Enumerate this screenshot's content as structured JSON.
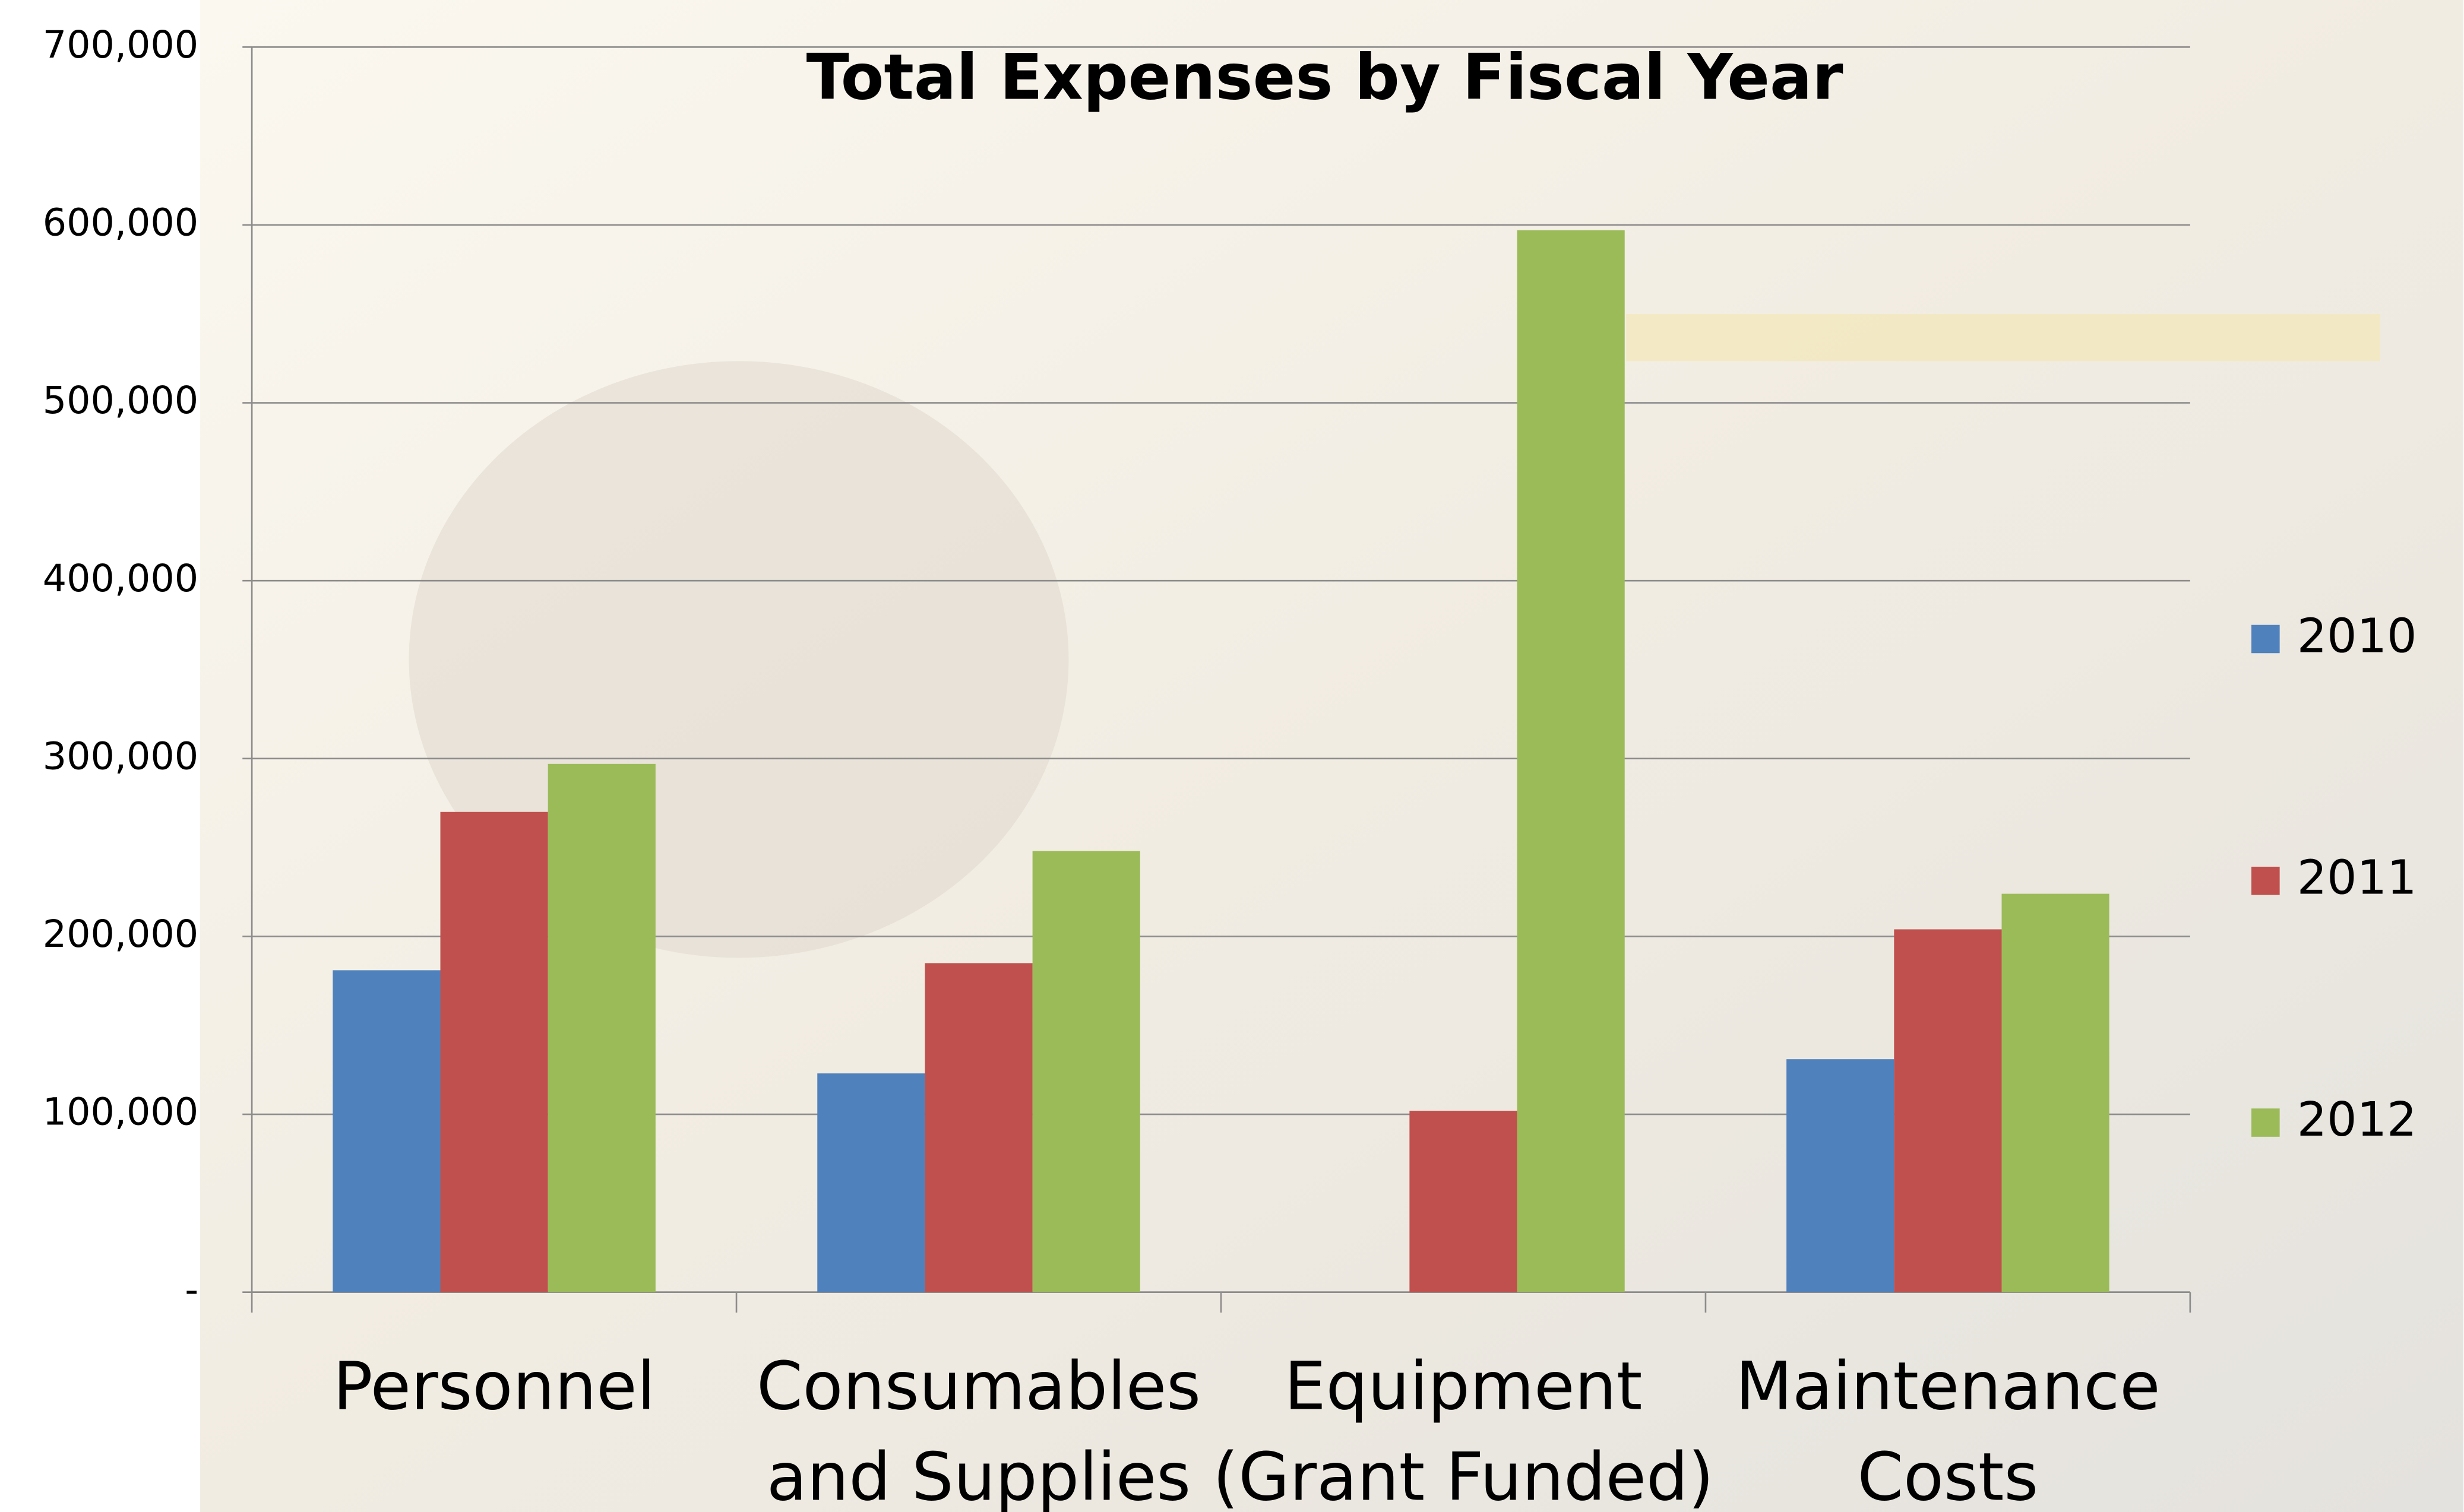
{
  "chart_data": {
    "type": "bar",
    "title": "Total  Expenses by Fiscal Year",
    "categories": [
      "Personnel",
      "Consumables\nand Supplies",
      "Equipment\n(Grant Funded)",
      "Maintenance\nCosts"
    ],
    "series": [
      {
        "name": "2010",
        "color": "#4f81bd",
        "values": [
          181000,
          123000,
          null,
          131000
        ]
      },
      {
        "name": "2011",
        "color": "#c0504d",
        "values": [
          270000,
          185000,
          102000,
          204000
        ]
      },
      {
        "name": "2012",
        "color": "#9bbb59",
        "values": [
          297000,
          248000,
          597000,
          224000
        ]
      }
    ],
    "ylim": [
      0,
      700000
    ],
    "yticks": [
      {
        "value": 0,
        "label": "-"
      },
      {
        "value": 100000,
        "label": "100,000"
      },
      {
        "value": 200000,
        "label": "200,000"
      },
      {
        "value": 300000,
        "label": "300,000"
      },
      {
        "value": 400000,
        "label": "400,000"
      },
      {
        "value": 500000,
        "label": "500,000"
      },
      {
        "value": 600000,
        "label": "600,000"
      },
      {
        "value": 700000,
        "label": "700,000"
      }
    ],
    "grid": true,
    "legend": "right"
  }
}
